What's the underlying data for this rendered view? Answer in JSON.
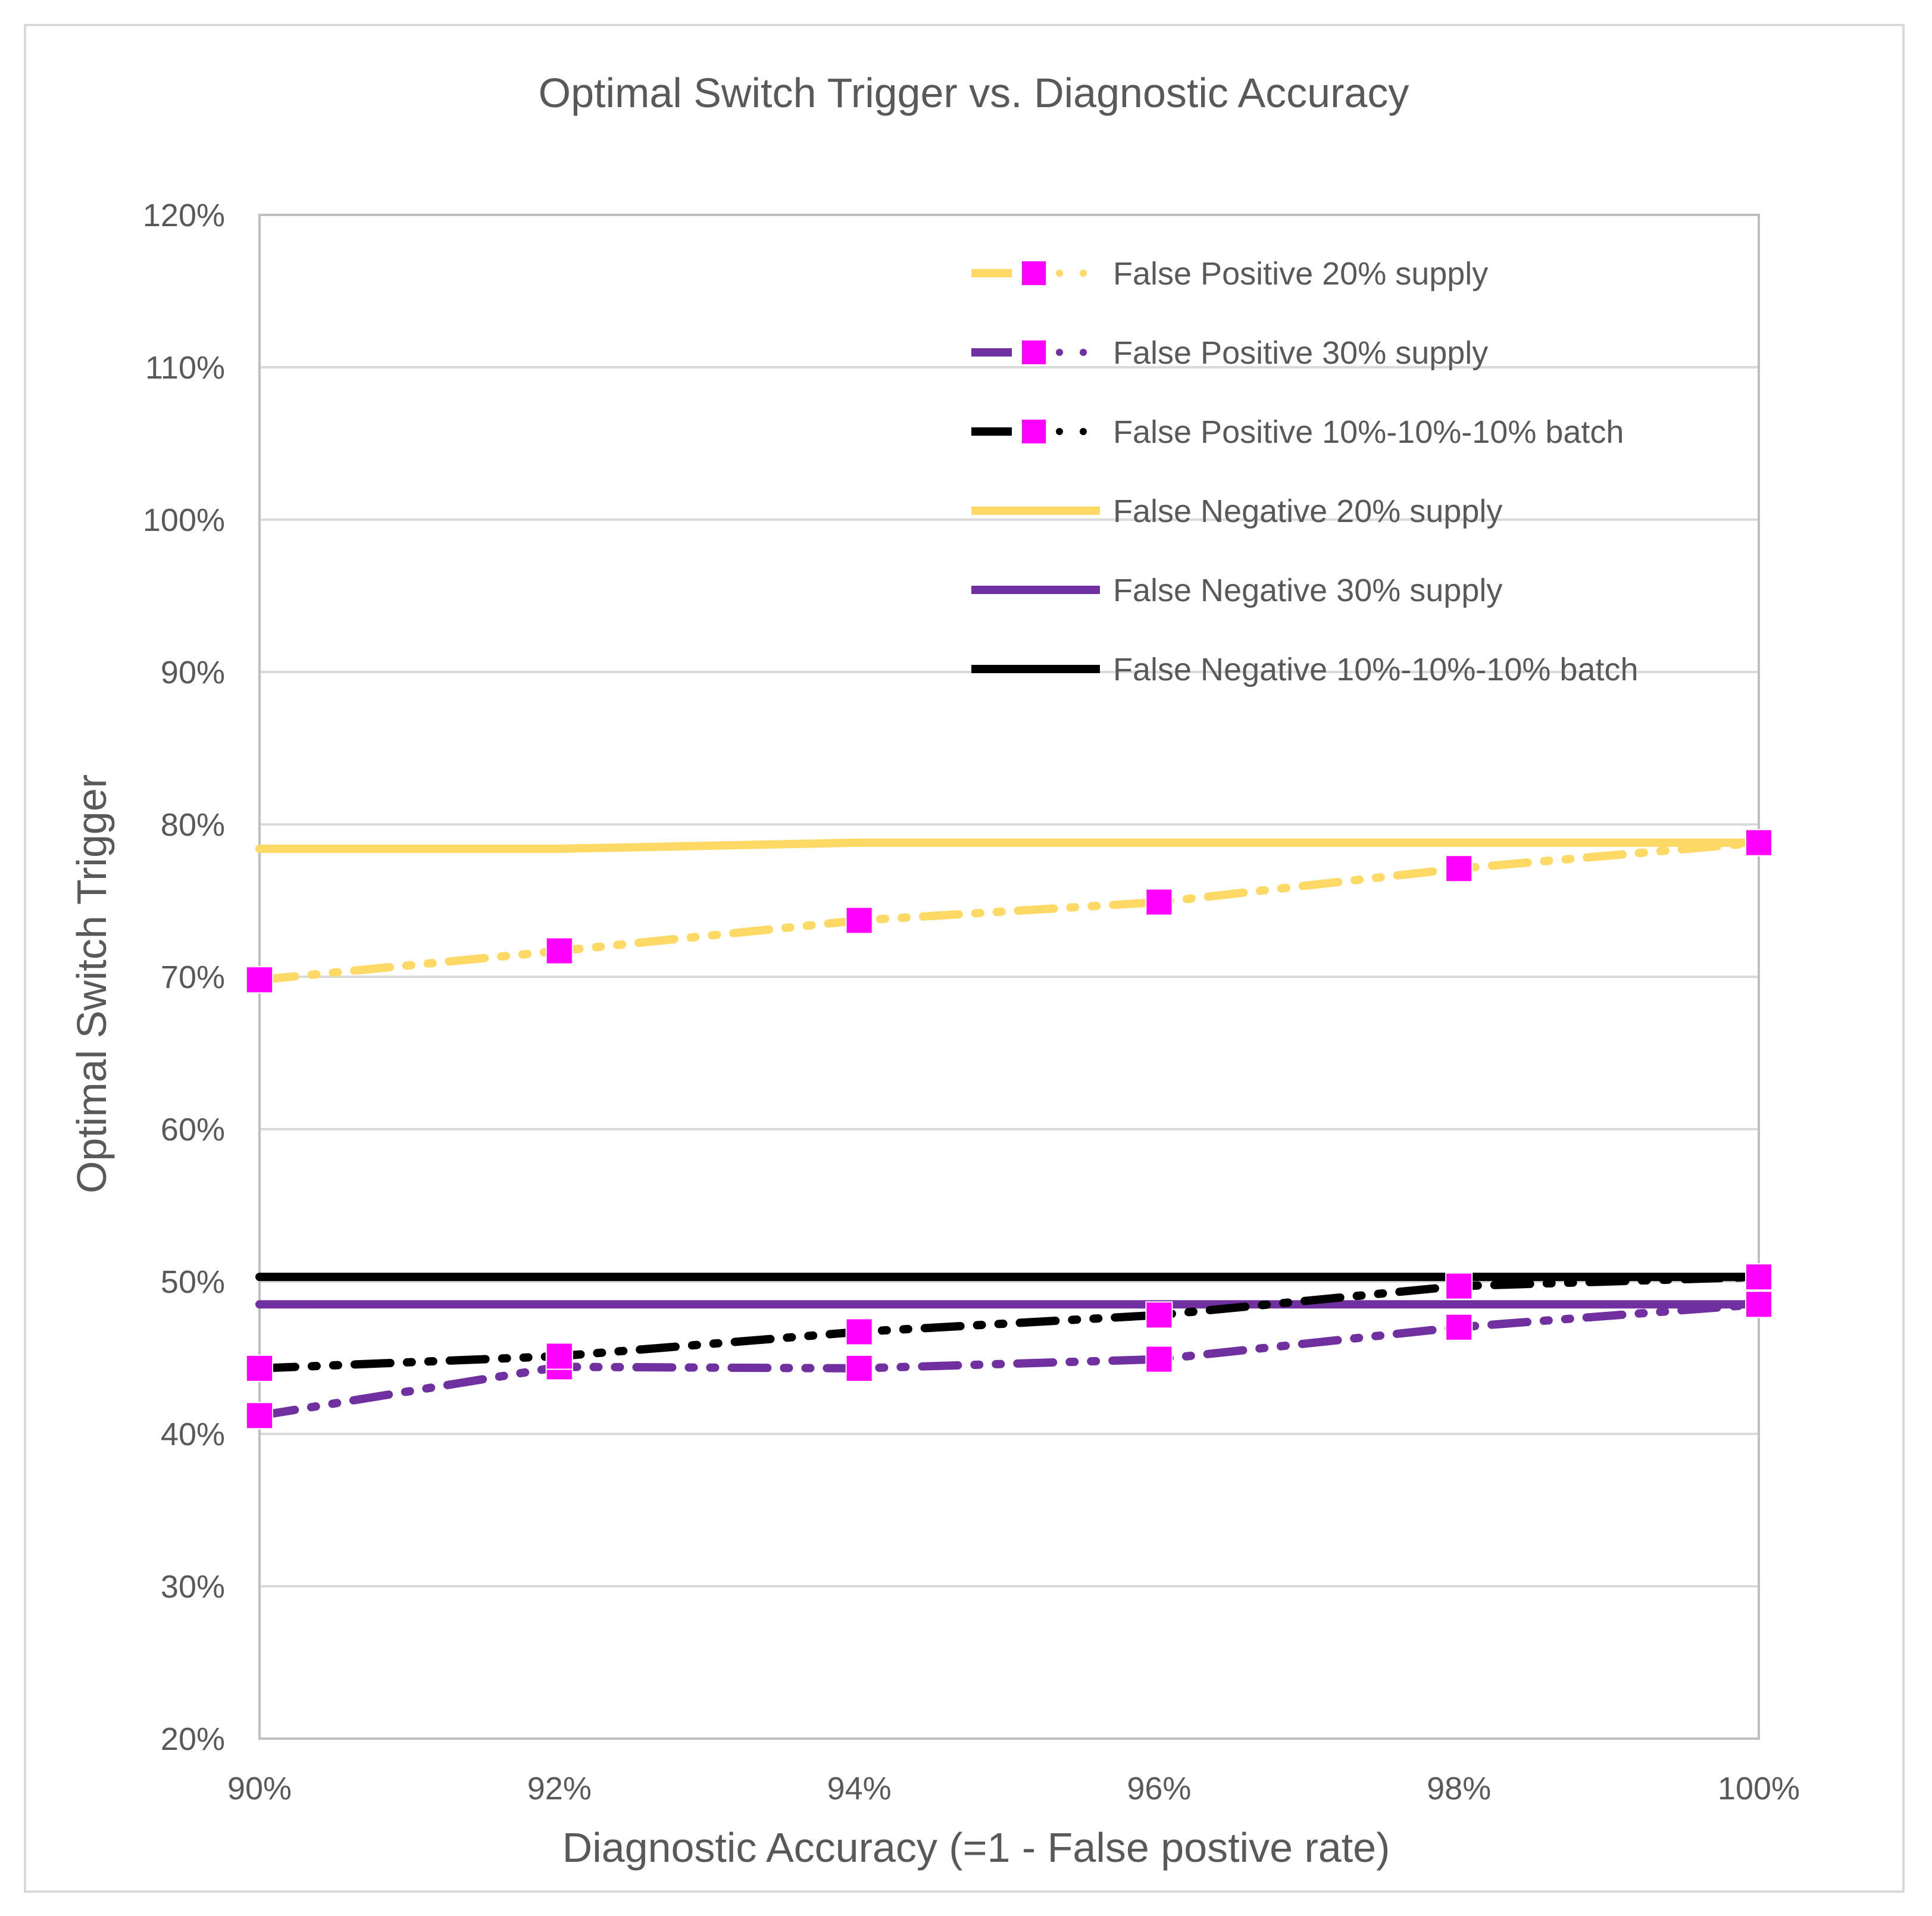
{
  "chart_data": {
    "type": "line",
    "title": "Optimal Switch Trigger vs. Diagnostic Accuracy",
    "xlabel": "Diagnostic Accuracy (=1 - False postive rate)",
    "ylabel": "Optimal Switch Trigger",
    "x": [
      90,
      92,
      94,
      96,
      98,
      100
    ],
    "x_tick_labels": [
      "90%",
      "92%",
      "94%",
      "96%",
      "98%",
      "100%"
    ],
    "xlim": [
      90,
      100
    ],
    "ylim": [
      20,
      120
    ],
    "y_ticks": [
      20,
      30,
      40,
      50,
      60,
      70,
      80,
      90,
      100,
      110,
      120
    ],
    "y_tick_labels": [
      "20%",
      "30%",
      "40%",
      "50%",
      "60%",
      "70%",
      "80%",
      "90%",
      "100%",
      "110%",
      "120%"
    ],
    "grid": true,
    "legend_position": "top-right",
    "series": [
      {
        "name": "False Positive 20% supply",
        "values": [
          69.8,
          71.7,
          73.7,
          74.9,
          77.1,
          78.8
        ],
        "color": "#ffd966",
        "style": "dash-dot-dot",
        "marker": "square",
        "marker_color": "#ff00ff"
      },
      {
        "name": "False Positive 30% supply",
        "values": [
          41.2,
          44.4,
          44.3,
          44.9,
          47.0,
          48.5
        ],
        "color": "#7030a0",
        "style": "dash-dot-dot",
        "marker": "square",
        "marker_color": "#ff00ff"
      },
      {
        "name": "False Positive 10%-10%-10% batch",
        "values": [
          44.3,
          45.1,
          46.7,
          47.8,
          49.7,
          50.3
        ],
        "color": "#000000",
        "style": "dash-dot-dot",
        "marker": "square",
        "marker_color": "#ff00ff"
      },
      {
        "name": "False Negative 20% supply",
        "values": [
          78.4,
          78.4,
          78.8,
          78.8,
          78.8,
          78.8
        ],
        "color": "#ffd966",
        "style": "solid",
        "marker": "none"
      },
      {
        "name": "False Negative 30% supply",
        "values": [
          48.5,
          48.5,
          48.5,
          48.5,
          48.5,
          48.5
        ],
        "color": "#7030a0",
        "style": "solid",
        "marker": "none"
      },
      {
        "name": "False Negative 10%-10%-10% batch",
        "values": [
          50.3,
          50.3,
          50.3,
          50.3,
          50.3,
          50.3
        ],
        "color": "#000000",
        "style": "solid",
        "marker": "none"
      }
    ]
  }
}
